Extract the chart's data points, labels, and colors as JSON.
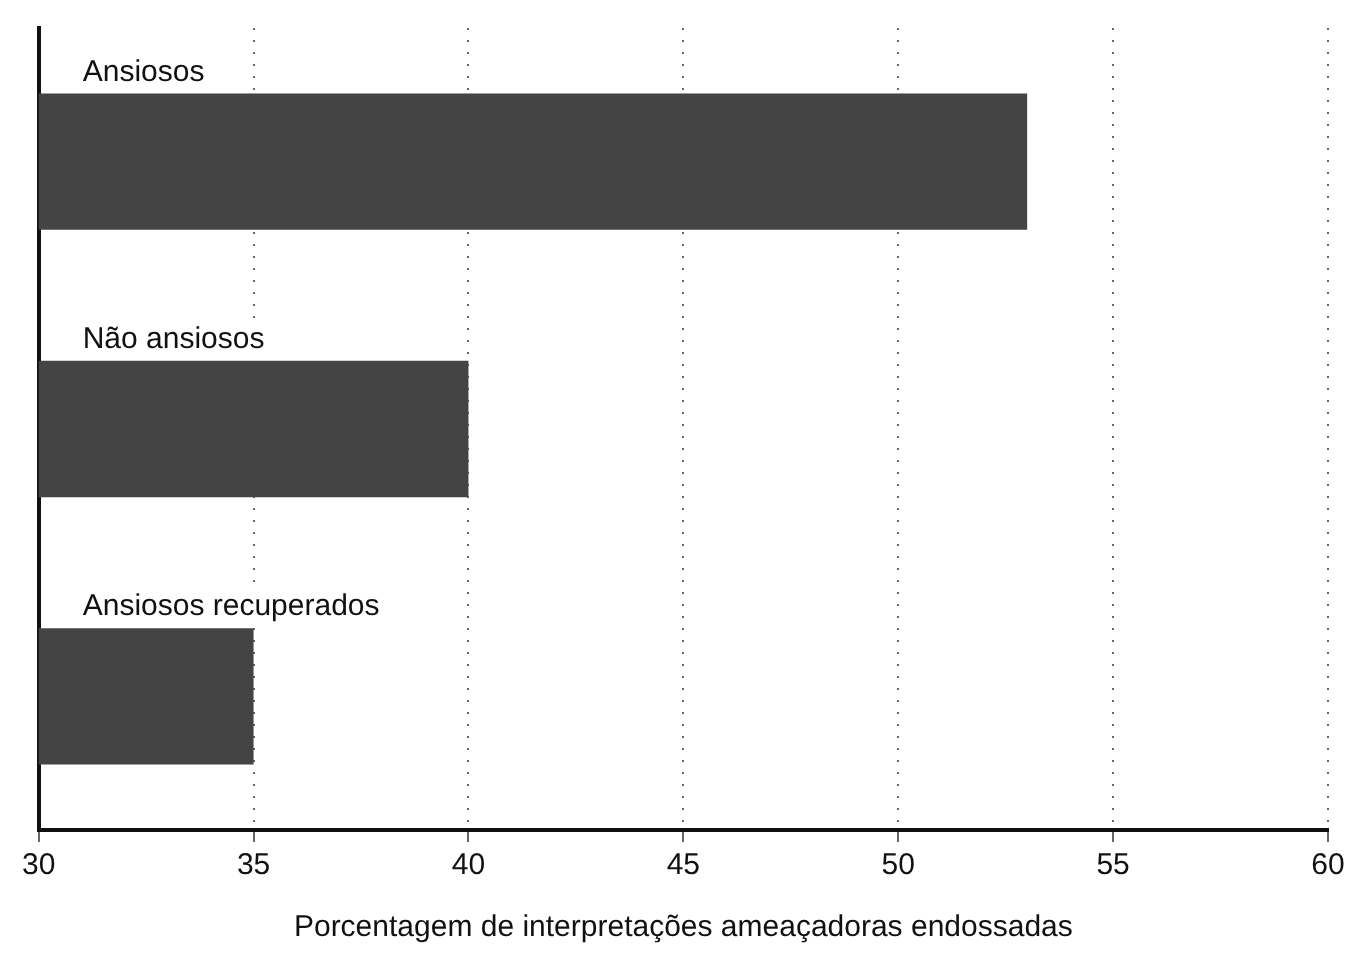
{
  "chart_data": {
    "type": "bar",
    "orientation": "horizontal",
    "xlabel": "Porcentagem de interpretações ameaçadoras endossadas",
    "categories": [
      "Ansiosos",
      "Não ansiosos",
      "Ansiosos recuperados"
    ],
    "values": [
      53,
      40,
      35
    ],
    "color": "#444444",
    "xlim": [
      30,
      60
    ],
    "xticks": [
      30,
      35,
      40,
      45,
      50,
      55,
      60
    ],
    "grid": "x",
    "legend": false
  }
}
